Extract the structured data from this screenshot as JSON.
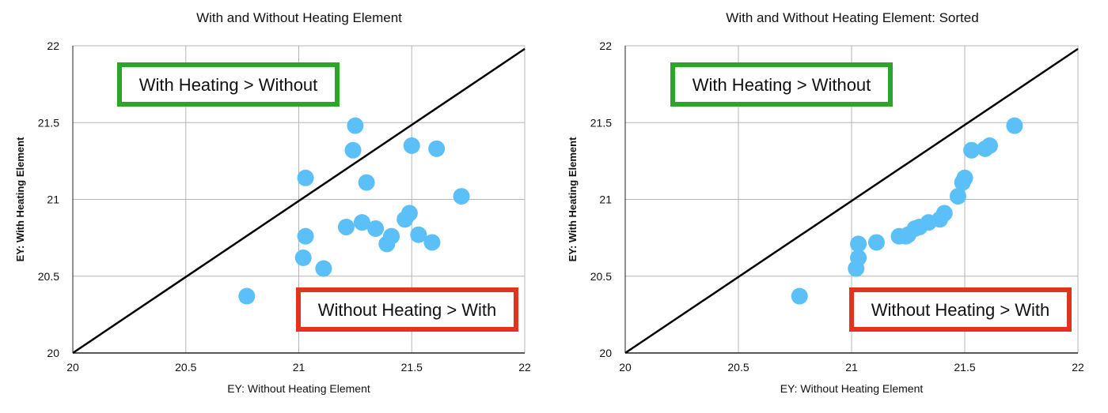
{
  "chart_data": [
    {
      "type": "scatter",
      "title": "With and Without Heating Element",
      "xlabel": "EY: Without Heating Element",
      "ylabel": "EY: With Heating Element",
      "xlim": [
        20,
        22
      ],
      "ylim": [
        20,
        22
      ],
      "xticks": [
        "20",
        "20.5",
        "21",
        "21.5",
        "22"
      ],
      "yticks": [
        "20",
        "20.5",
        "21",
        "21.5",
        "22"
      ],
      "grid": true,
      "reference_line": {
        "from": [
          20,
          20
        ],
        "to": [
          22,
          21.98
        ]
      },
      "annotations": [
        {
          "text": "With Heating > Without",
          "color": "#2ca52a"
        },
        {
          "text": "Without Heating > With",
          "color": "#e2331f"
        }
      ],
      "point_color": "#5bc0f7",
      "points": [
        {
          "x": 20.77,
          "y": 20.37
        },
        {
          "x": 21.02,
          "y": 20.62
        },
        {
          "x": 21.03,
          "y": 21.14
        },
        {
          "x": 21.03,
          "y": 20.76
        },
        {
          "x": 21.11,
          "y": 20.55
        },
        {
          "x": 21.21,
          "y": 20.82
        },
        {
          "x": 21.24,
          "y": 21.32
        },
        {
          "x": 21.25,
          "y": 21.48
        },
        {
          "x": 21.28,
          "y": 20.85
        },
        {
          "x": 21.3,
          "y": 21.11
        },
        {
          "x": 21.34,
          "y": 20.81
        },
        {
          "x": 21.39,
          "y": 20.71
        },
        {
          "x": 21.41,
          "y": 20.76
        },
        {
          "x": 21.47,
          "y": 20.87
        },
        {
          "x": 21.49,
          "y": 20.91
        },
        {
          "x": 21.5,
          "y": 21.35
        },
        {
          "x": 21.53,
          "y": 20.77
        },
        {
          "x": 21.59,
          "y": 20.72
        },
        {
          "x": 21.61,
          "y": 21.33
        },
        {
          "x": 21.72,
          "y": 21.02
        }
      ]
    },
    {
      "type": "scatter",
      "title": "With and Without Heating Element: Sorted",
      "xlabel": "EY: Without Heating Element",
      "ylabel": "EY: With Heating Element",
      "xlim": [
        20,
        22
      ],
      "ylim": [
        20,
        22
      ],
      "xticks": [
        "20",
        "20.5",
        "21",
        "21.5",
        "22"
      ],
      "yticks": [
        "20",
        "20.5",
        "21",
        "21.5",
        "22"
      ],
      "grid": true,
      "reference_line": {
        "from": [
          20,
          20
        ],
        "to": [
          22,
          21.98
        ]
      },
      "annotations": [
        {
          "text": "With Heating > Without",
          "color": "#2ca52a"
        },
        {
          "text": "Without Heating > With",
          "color": "#e2331f"
        }
      ],
      "point_color": "#5bc0f7",
      "points": [
        {
          "x": 20.77,
          "y": 20.37
        },
        {
          "x": 21.02,
          "y": 20.55
        },
        {
          "x": 21.03,
          "y": 20.62
        },
        {
          "x": 21.03,
          "y": 20.71
        },
        {
          "x": 21.11,
          "y": 20.72
        },
        {
          "x": 21.21,
          "y": 20.76
        },
        {
          "x": 21.24,
          "y": 20.76
        },
        {
          "x": 21.25,
          "y": 20.77
        },
        {
          "x": 21.28,
          "y": 20.81
        },
        {
          "x": 21.3,
          "y": 20.82
        },
        {
          "x": 21.34,
          "y": 20.85
        },
        {
          "x": 21.39,
          "y": 20.87
        },
        {
          "x": 21.41,
          "y": 20.91
        },
        {
          "x": 21.47,
          "y": 21.02
        },
        {
          "x": 21.49,
          "y": 21.11
        },
        {
          "x": 21.5,
          "y": 21.14
        },
        {
          "x": 21.53,
          "y": 21.32
        },
        {
          "x": 21.59,
          "y": 21.33
        },
        {
          "x": 21.61,
          "y": 21.35
        },
        {
          "x": 21.72,
          "y": 21.48
        }
      ]
    }
  ]
}
